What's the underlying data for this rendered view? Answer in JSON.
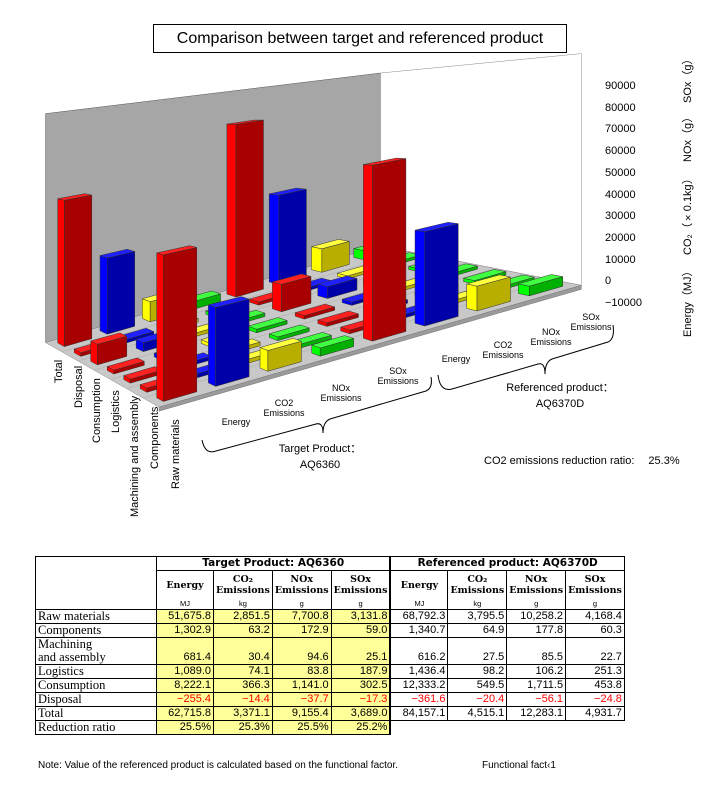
{
  "title": "Comparison  between target and referenced product",
  "chart_data": {
    "type": "bar3d",
    "title": "Comparison  between target and referenced product",
    "categories": [
      "Raw materials",
      "Components",
      "Machining and assembly",
      "Logistics",
      "Consumption",
      "Disposal",
      "Total"
    ],
    "columns": [
      {
        "group": "target",
        "label": [
          "Energy"
        ],
        "color": "#ff0000",
        "values": [
          51675.8,
          1302.9,
          681.4,
          1089.0,
          8222.1,
          -255.4,
          62715.8
        ]
      },
      {
        "group": "target",
        "label": [
          "CO2",
          "Emissions"
        ],
        "color": "#0000ff",
        "values": [
          28515,
          632,
          304,
          741,
          3663,
          -144,
          33711
        ]
      },
      {
        "group": "target",
        "label": [
          "NOx",
          "Emissions"
        ],
        "color": "#ffff00",
        "values": [
          7700.8,
          172.9,
          94.6,
          83.8,
          1141.0,
          -37.7,
          9155.4
        ]
      },
      {
        "group": "target",
        "label": [
          "SOx",
          "Emissions"
        ],
        "color": "#00ff00",
        "values": [
          3131.8,
          59.0,
          25.1,
          187.9,
          302.5,
          -17.3,
          3689.0
        ]
      },
      {
        "group": "referenced",
        "label": [
          "Energy"
        ],
        "color": "#ff0000",
        "values": [
          68792.3,
          1340.7,
          616.2,
          1436.4,
          12333.2,
          -361.6,
          84157.1
        ]
      },
      {
        "group": "referenced",
        "label": [
          "CO2",
          "Emissions"
        ],
        "color": "#0000ff",
        "values": [
          37955,
          649,
          275,
          982,
          5495,
          -204,
          45151
        ]
      },
      {
        "group": "referenced",
        "label": [
          "NOx",
          "Emissions"
        ],
        "color": "#ffff00",
        "values": [
          10258.2,
          177.8,
          85.5,
          106.2,
          1711.5,
          -56.1,
          12283.1
        ]
      },
      {
        "group": "referenced",
        "label": [
          "SOx",
          "Emissions"
        ],
        "color": "#00ff00",
        "values": [
          4168.4,
          60.3,
          22.7,
          251.3,
          453.8,
          -24.8,
          4931.7
        ]
      }
    ],
    "zlim": [
      -10000,
      90000
    ],
    "z_ticks": [
      "90000",
      "80000",
      "70000",
      "60000",
      "50000",
      "40000",
      "30000",
      "20000",
      "10000",
      "0",
      "−10000"
    ],
    "z_axis_titles": [
      "Energy（MJ）",
      "CO₂（×0.1kg）",
      "NOx（g）",
      "SOx（g）"
    ],
    "groups": {
      "target": [
        "Target Product：",
        "AQ6360"
      ],
      "referenced": [
        "Referenced product：",
        "AQ6370D"
      ]
    }
  },
  "ratio": {
    "label": "CO2 emissions reduction ratio:",
    "value": "25.3%"
  },
  "table": {
    "target_title": "Target Product: AQ6360",
    "ref_title": "Referenced product: AQ6370D",
    "headers": [
      [
        "Energy",
        ""
      ],
      [
        "CO₂",
        "Emissions"
      ],
      [
        "NOx",
        "Emissions"
      ],
      [
        "SOx",
        "Emissions"
      ]
    ],
    "units": [
      "MJ",
      "kg",
      "g",
      "g"
    ],
    "rows": [
      {
        "label": [
          "Raw materials"
        ],
        "target": [
          "51,675.8",
          "2,851.5",
          "7,700.8",
          "3,131.8"
        ],
        "ref": [
          "68,792.3",
          "3,795.5",
          "10,258.2",
          "4,168.4"
        ]
      },
      {
        "label": [
          "Components"
        ],
        "target": [
          "1,302.9",
          "63.2",
          "172.9",
          "59.0"
        ],
        "ref": [
          "1,340.7",
          "64.9",
          "177.8",
          "60.3"
        ]
      },
      {
        "label": [
          "Machining",
          "and assembly"
        ],
        "target": [
          "681.4",
          "30.4",
          "94.6",
          "25.1"
        ],
        "ref": [
          "616.2",
          "27.5",
          "85.5",
          "22.7"
        ]
      },
      {
        "label": [
          "Logistics"
        ],
        "target": [
          "1,089.0",
          "74.1",
          "83.8",
          "187.9"
        ],
        "ref": [
          "1,436.4",
          "98.2",
          "106.2",
          "251.3"
        ]
      },
      {
        "label": [
          "Consumption"
        ],
        "target": [
          "8,222.1",
          "366.3",
          "1,141.0",
          "302.5"
        ],
        "ref": [
          "12,333.2",
          "549.5",
          "1,711.5",
          "453.8"
        ]
      },
      {
        "label": [
          "Disposal"
        ],
        "target": [
          "−255.4",
          "−14.4",
          "−37.7",
          "−17.3"
        ],
        "ref": [
          "−361.6",
          "−20.4",
          "−56.1",
          "−24.8"
        ],
        "negative": true
      },
      {
        "label": [
          "Total"
        ],
        "target": [
          "62,715.8",
          "3,371.1",
          "9,155.4",
          "3,689.0"
        ],
        "ref": [
          "84,157.1",
          "4,515.1",
          "12,283.1",
          "4,931.7"
        ]
      }
    ],
    "reduction": {
      "label": "Reduction ratio",
      "values": [
        "25.5%",
        "25.3%",
        "25.5%",
        "25.2%"
      ]
    }
  },
  "note": "Note: Value of the referenced product is calculated based on the functional factor.",
  "functional_factor": {
    "label": "Functional fact‹",
    "value": "1"
  }
}
